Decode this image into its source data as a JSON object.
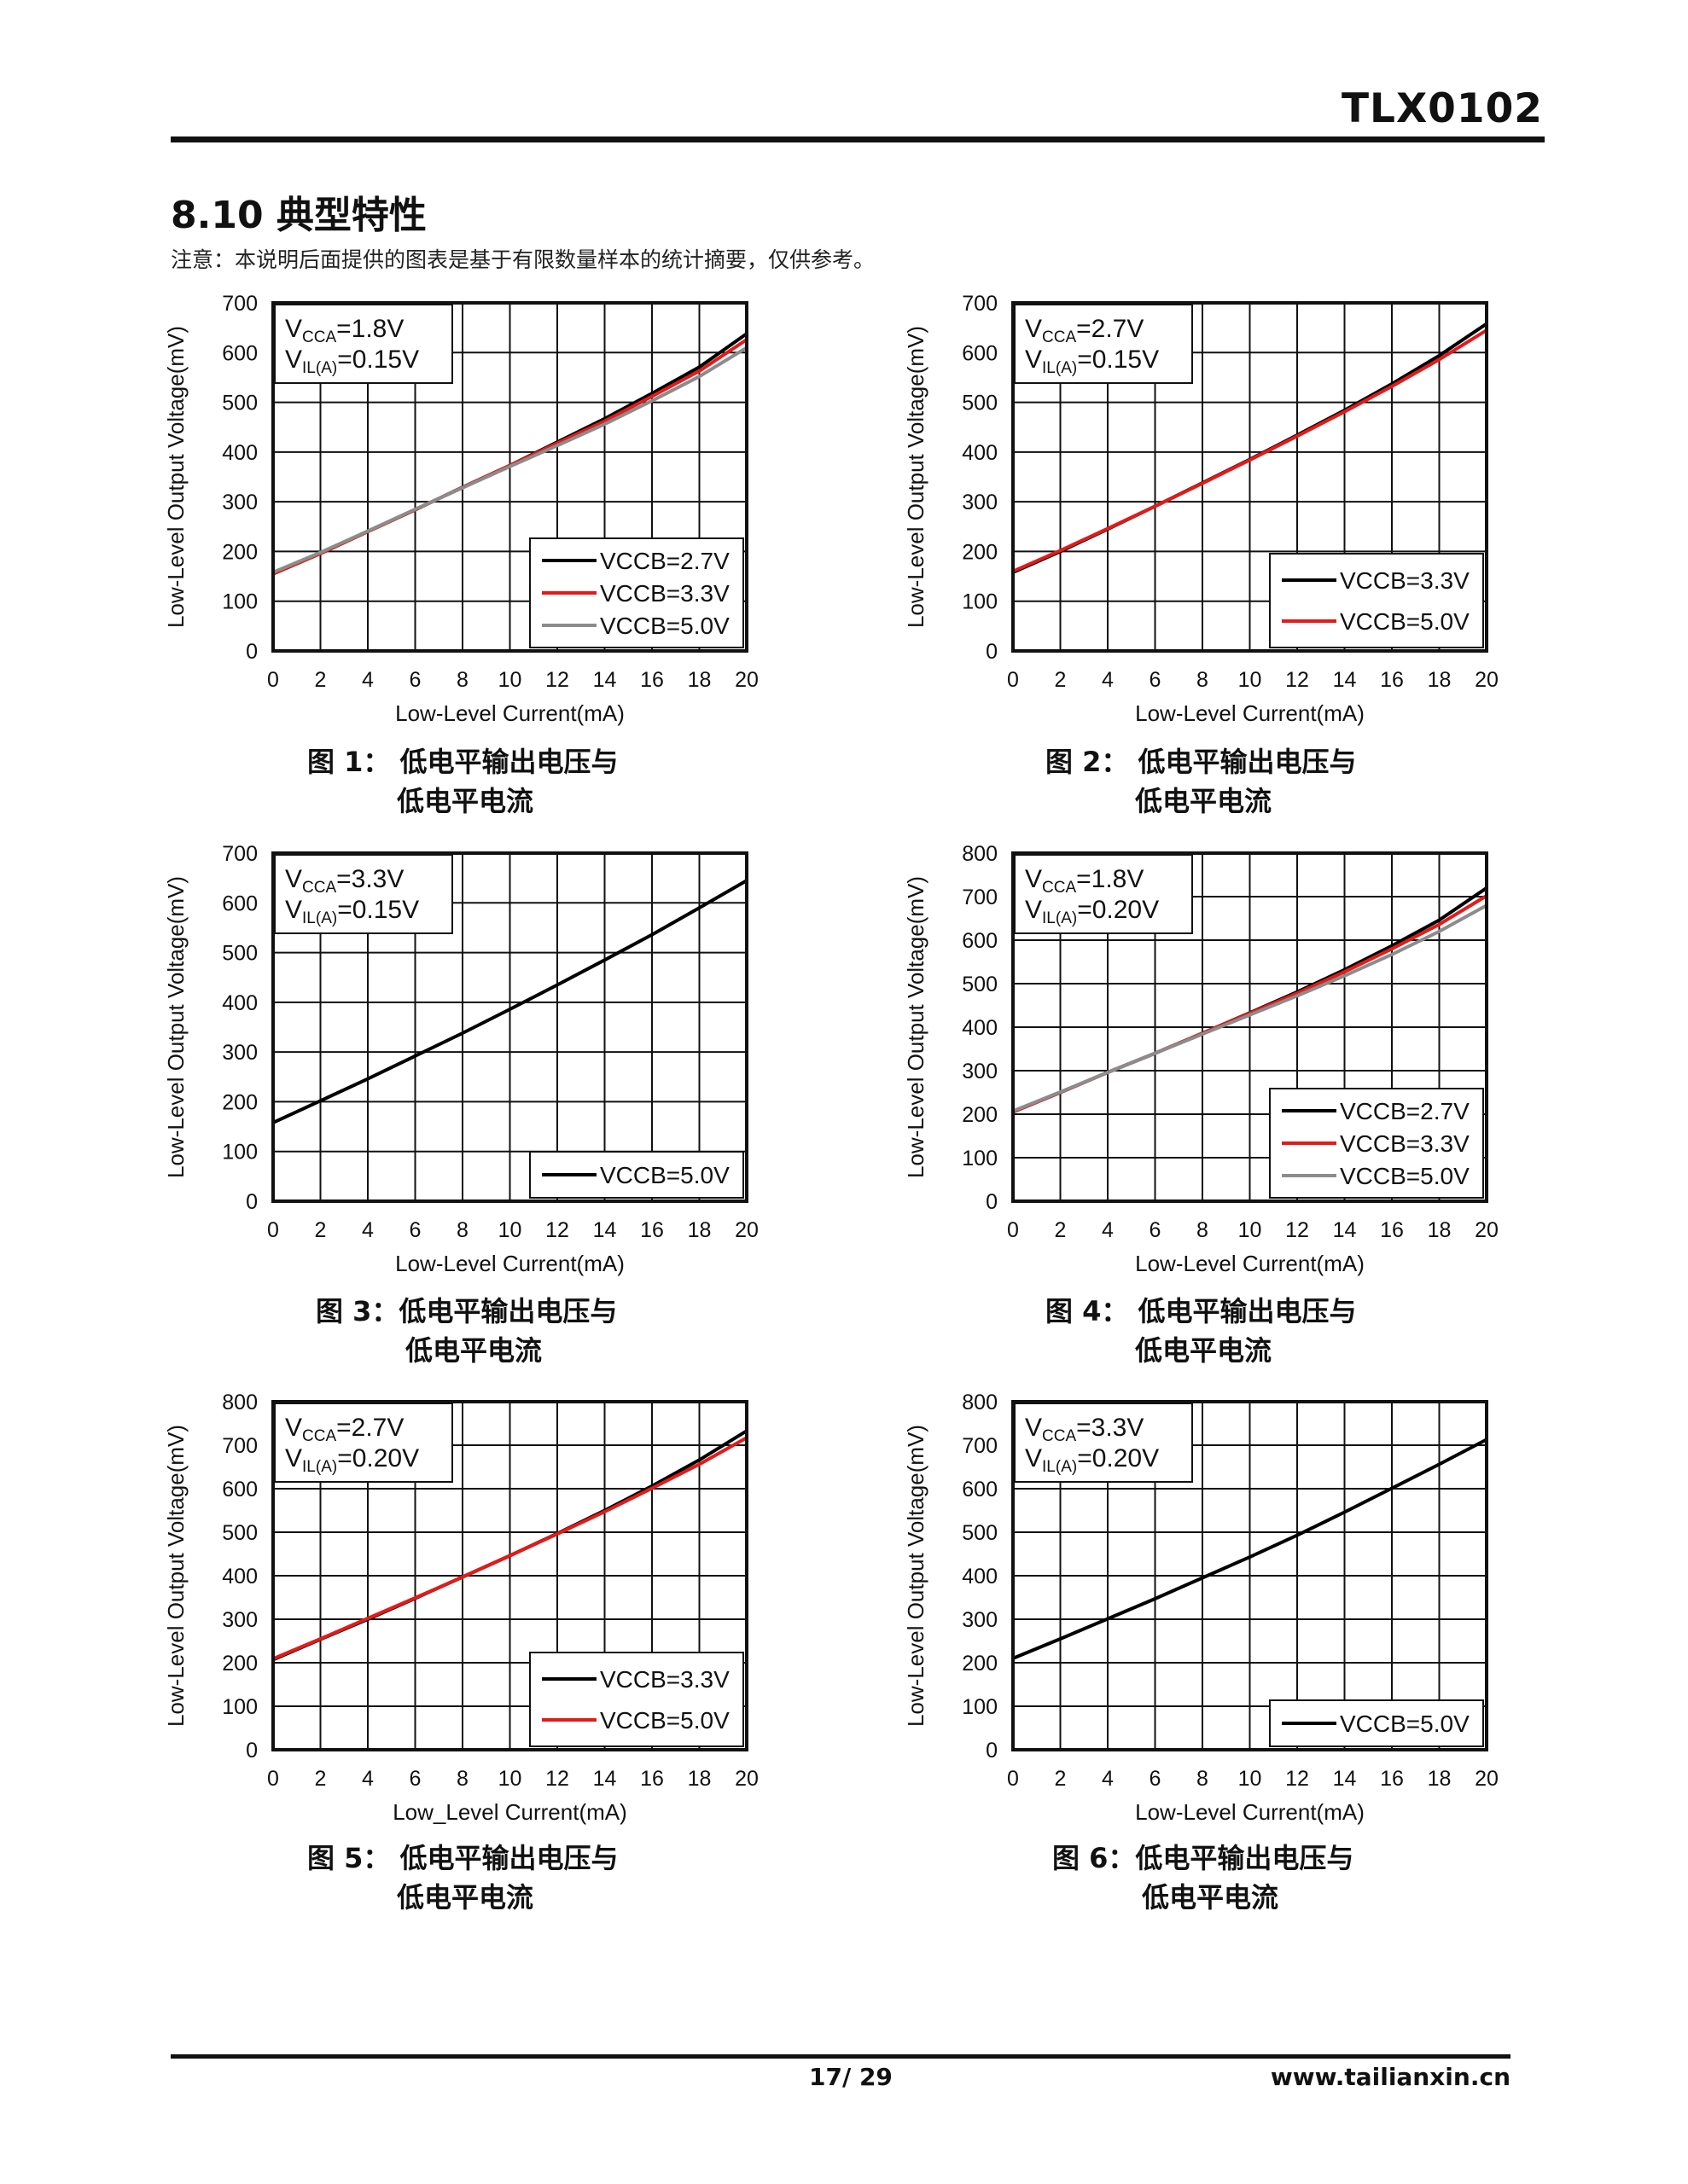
{
  "header": {
    "doc_title": "TLX0102"
  },
  "section": {
    "heading": "8.10 典型特性",
    "note": "注意：本说明后面提供的图表是基于有限数量样本的统计摘要，仅供参考。"
  },
  "footer": {
    "page_number": "17/ 29",
    "website": "www.tailianxin.cn"
  },
  "colors": {
    "vccb_2_7": "#000000",
    "vccb_3_3": "#e41a1a",
    "vccb_5_0": "#8c8c8c",
    "vccb_5_0_only": "#000000"
  },
  "chart_data": [
    {
      "id": "fig1",
      "type": "line",
      "caption_line1": "图 1： 低电平输出电压与",
      "caption_line2": "低电平电流",
      "xlabel": "Low-Level Current(mA)",
      "ylabel": "Low-Level Output Voltage(mV)",
      "xlim": [
        0,
        20
      ],
      "ylim": [
        0,
        700
      ],
      "xticks": [
        "0",
        "2",
        "4",
        "6",
        "8",
        "10",
        "12",
        "14",
        "16",
        "18",
        "20"
      ],
      "yticks": [
        "0",
        "100",
        "200",
        "300",
        "400",
        "500",
        "600",
        "700"
      ],
      "grid": true,
      "legend_position": "bottom-right",
      "cond_line1": "VCCA=1.8V",
      "cond_line2": "VIL(A)=0.15V",
      "x": [
        0,
        2,
        4,
        6,
        8,
        10,
        12,
        14,
        16,
        18,
        20
      ],
      "series": [
        {
          "name": "VCCB=2.7V",
          "color": "#000000",
          "values": [
            155,
            196,
            240,
            284,
            329,
            373,
            420,
            467,
            518,
            571,
            638
          ]
        },
        {
          "name": "VCCB=3.3V",
          "color": "#e41a1a",
          "values": [
            155,
            196,
            240,
            284,
            329,
            373,
            418,
            462,
            512,
            563,
            626
          ]
        },
        {
          "name": "VCCB=5.0V",
          "color": "#8c8c8c",
          "values": [
            158,
            198,
            241,
            285,
            328,
            371,
            413,
            456,
            503,
            552,
            610
          ]
        }
      ]
    },
    {
      "id": "fig2",
      "type": "line",
      "caption_line1": "图 2： 低电平输出电压与",
      "caption_line2": "低电平电流",
      "xlabel": "Low-Level Current(mA)",
      "ylabel": "Low-Level Output Voltage(mV)",
      "xlim": [
        0,
        20
      ],
      "ylim": [
        0,
        700
      ],
      "xticks": [
        "0",
        "2",
        "4",
        "6",
        "8",
        "10",
        "12",
        "14",
        "16",
        "18",
        "20"
      ],
      "yticks": [
        "0",
        "100",
        "200",
        "300",
        "400",
        "500",
        "600",
        "700"
      ],
      "grid": true,
      "legend_position": "bottom-right",
      "cond_line1": "VCCA=2.7V",
      "cond_line2": "VIL(A)=0.15V",
      "x": [
        0,
        2,
        4,
        6,
        8,
        10,
        12,
        14,
        16,
        18,
        20
      ],
      "series": [
        {
          "name": "VCCB=3.3V",
          "color": "#000000",
          "values": [
            158,
            200,
            245,
            291,
            338,
            385,
            434,
            484,
            537,
            594,
            658
          ]
        },
        {
          "name": "VCCB=5.0V",
          "color": "#e41a1a",
          "values": [
            160,
            202,
            246,
            291,
            337,
            384,
            432,
            481,
            532,
            586,
            645
          ]
        }
      ]
    },
    {
      "id": "fig3",
      "type": "line",
      "caption_line1": "图 3：低电平输出电压与",
      "caption_line2": "低电平电流",
      "xlabel": "Low-Level Current(mA)",
      "ylabel": "Low-Level Output Voltage(mV)",
      "xlim": [
        0,
        20
      ],
      "ylim": [
        0,
        700
      ],
      "xticks": [
        "0",
        "2",
        "4",
        "6",
        "8",
        "10",
        "12",
        "14",
        "16",
        "18",
        "20"
      ],
      "yticks": [
        "0",
        "100",
        "200",
        "300",
        "400",
        "500",
        "600",
        "700"
      ],
      "grid": true,
      "legend_position": "bottom-right",
      "cond_line1": "VCCA=3.3V",
      "cond_line2": "VIL(A)=0.15V",
      "x": [
        0,
        2,
        4,
        6,
        8,
        10,
        12,
        14,
        16,
        18,
        20
      ],
      "series": [
        {
          "name": "VCCB=5.0V",
          "color": "#000000",
          "values": [
            158,
            202,
            246,
            292,
            338,
            386,
            435,
            485,
            536,
            590,
            645
          ]
        }
      ]
    },
    {
      "id": "fig4",
      "type": "line",
      "caption_line1": "图 4： 低电平输出电压与",
      "caption_line2": "低电平电流",
      "xlabel": "Low-Level Current(mA)",
      "ylabel": "Low-Level Output Voltage(mV)",
      "xlim": [
        0,
        20
      ],
      "ylim": [
        0,
        800
      ],
      "xticks": [
        "0",
        "2",
        "4",
        "6",
        "8",
        "10",
        "12",
        "14",
        "16",
        "18",
        "20"
      ],
      "yticks": [
        "0",
        "100",
        "200",
        "300",
        "400",
        "500",
        "600",
        "700",
        "800"
      ],
      "grid": true,
      "legend_position": "bottom-right",
      "cond_line1": "VCCA=1.8V",
      "cond_line2": "VIL(A)=0.20V",
      "x": [
        0,
        2,
        4,
        6,
        8,
        10,
        12,
        14,
        16,
        18,
        20
      ],
      "series": [
        {
          "name": "VCCB=2.7V",
          "color": "#000000",
          "values": [
            205,
            250,
            296,
            340,
            386,
            433,
            481,
            532,
            587,
            646,
            720
          ]
        },
        {
          "name": "VCCB=3.3V",
          "color": "#e41a1a",
          "values": [
            205,
            250,
            296,
            340,
            386,
            432,
            478,
            527,
            580,
            636,
            702
          ]
        },
        {
          "name": "VCCB=5.0V",
          "color": "#8c8c8c",
          "values": [
            207,
            251,
            296,
            340,
            384,
            428,
            472,
            518,
            567,
            620,
            680
          ]
        }
      ]
    },
    {
      "id": "fig5",
      "type": "line",
      "caption_line1": "图 5： 低电平输出电压与",
      "caption_line2": "低电平电流",
      "xlabel": "Low_Level Current(mA)",
      "ylabel": "Low-Level Output Voltage(mV)",
      "xlim": [
        0,
        20
      ],
      "ylim": [
        0,
        800
      ],
      "xticks": [
        "0",
        "2",
        "4",
        "6",
        "8",
        "10",
        "12",
        "14",
        "16",
        "18",
        "20"
      ],
      "yticks": [
        "0",
        "100",
        "200",
        "300",
        "400",
        "500",
        "600",
        "700",
        "800"
      ],
      "grid": true,
      "legend_position": "bottom-right",
      "cond_line1": "VCCA=2.7V",
      "cond_line2": "VIL(A)=0.20V",
      "x": [
        0,
        2,
        4,
        6,
        8,
        10,
        12,
        14,
        16,
        18,
        20
      ],
      "series": [
        {
          "name": "VCCB=3.3V",
          "color": "#000000",
          "values": [
            207,
            254,
            300,
            348,
            397,
            446,
            497,
            550,
            606,
            666,
            733
          ]
        },
        {
          "name": "VCCB=5.0V",
          "color": "#e41a1a",
          "values": [
            209,
            255,
            302,
            349,
            397,
            446,
            496,
            547,
            601,
            656,
            717
          ]
        }
      ]
    },
    {
      "id": "fig6",
      "type": "line",
      "caption_line1": "图 6：低电平输出电压与",
      "caption_line2": "低电平电流",
      "xlabel": "Low-Level Current(mA)",
      "ylabel": "Low-Level Output Voltage(mV)",
      "xlim": [
        0,
        20
      ],
      "ylim": [
        0,
        800
      ],
      "xticks": [
        "0",
        "2",
        "4",
        "6",
        "8",
        "10",
        "12",
        "14",
        "16",
        "18",
        "20"
      ],
      "yticks": [
        "0",
        "100",
        "200",
        "300",
        "400",
        "500",
        "600",
        "700",
        "800"
      ],
      "grid": true,
      "legend_position": "bottom-right",
      "cond_line1": "VCCA=3.3V",
      "cond_line2": "VIL(A)=0.20V",
      "x": [
        0,
        2,
        4,
        6,
        8,
        10,
        12,
        14,
        16,
        18,
        20
      ],
      "series": [
        {
          "name": "VCCB=5.0V",
          "color": "#000000",
          "values": [
            210,
            255,
            301,
            347,
            395,
            443,
            493,
            546,
            601,
            656,
            713
          ]
        }
      ]
    }
  ]
}
